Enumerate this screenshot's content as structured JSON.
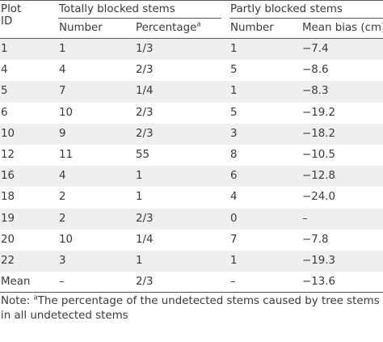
{
  "header": {
    "plot_id": "Plot ID",
    "plot_id_line1": "Plot",
    "plot_id_line2": "ID",
    "group_totally": "Totally blocked stems",
    "group_partly": "Partly blocked stems",
    "col_number_1": "Number",
    "col_percentage": "Percentage",
    "col_percentage_sup": "a",
    "col_number_2": "Number",
    "col_mean_bias": "Mean bias (cm)"
  },
  "rows": [
    {
      "plot": "1",
      "tb_number": "1",
      "tb_percentage": "1/3",
      "pb_number": "1",
      "pb_mean_bias": "−7.4"
    },
    {
      "plot": "4",
      "tb_number": "4",
      "tb_percentage": "2/3",
      "pb_number": "5",
      "pb_mean_bias": "−8.6"
    },
    {
      "plot": "5",
      "tb_number": "7",
      "tb_percentage": "1/4",
      "pb_number": "1",
      "pb_mean_bias": "−8.3"
    },
    {
      "plot": "6",
      "tb_number": "10",
      "tb_percentage": "2/3",
      "pb_number": "5",
      "pb_mean_bias": "−19.2"
    },
    {
      "plot": "10",
      "tb_number": "9",
      "tb_percentage": "2/3",
      "pb_number": "3",
      "pb_mean_bias": "−18.2"
    },
    {
      "plot": "12",
      "tb_number": "11",
      "tb_percentage": "55",
      "pb_number": "8",
      "pb_mean_bias": "−10.5"
    },
    {
      "plot": "16",
      "tb_number": "4",
      "tb_percentage": "1",
      "pb_number": "6",
      "pb_mean_bias": "−12.8"
    },
    {
      "plot": "18",
      "tb_number": "2",
      "tb_percentage": "1",
      "pb_number": "4",
      "pb_mean_bias": "−24.0"
    },
    {
      "plot": "19",
      "tb_number": "2",
      "tb_percentage": "2/3",
      "pb_number": "0",
      "pb_mean_bias": "–"
    },
    {
      "plot": "20",
      "tb_number": "10",
      "tb_percentage": "1/4",
      "pb_number": "7",
      "pb_mean_bias": "−7.8"
    },
    {
      "plot": "22",
      "tb_number": "3",
      "tb_percentage": "1",
      "pb_number": "1",
      "pb_mean_bias": "−19.3"
    },
    {
      "plot": "Mean",
      "tb_number": "–",
      "tb_percentage": "2/3",
      "pb_number": "–",
      "pb_mean_bias": "−13.6"
    }
  ],
  "note": {
    "prefix": "Note: ",
    "sup": "a",
    "text": "The percentage of the undetected stems caused by tree stems in all undetected stems"
  },
  "colors": {
    "text": "#3a3a3a",
    "rule": "#5a5a5a",
    "shade": "#efefef"
  }
}
